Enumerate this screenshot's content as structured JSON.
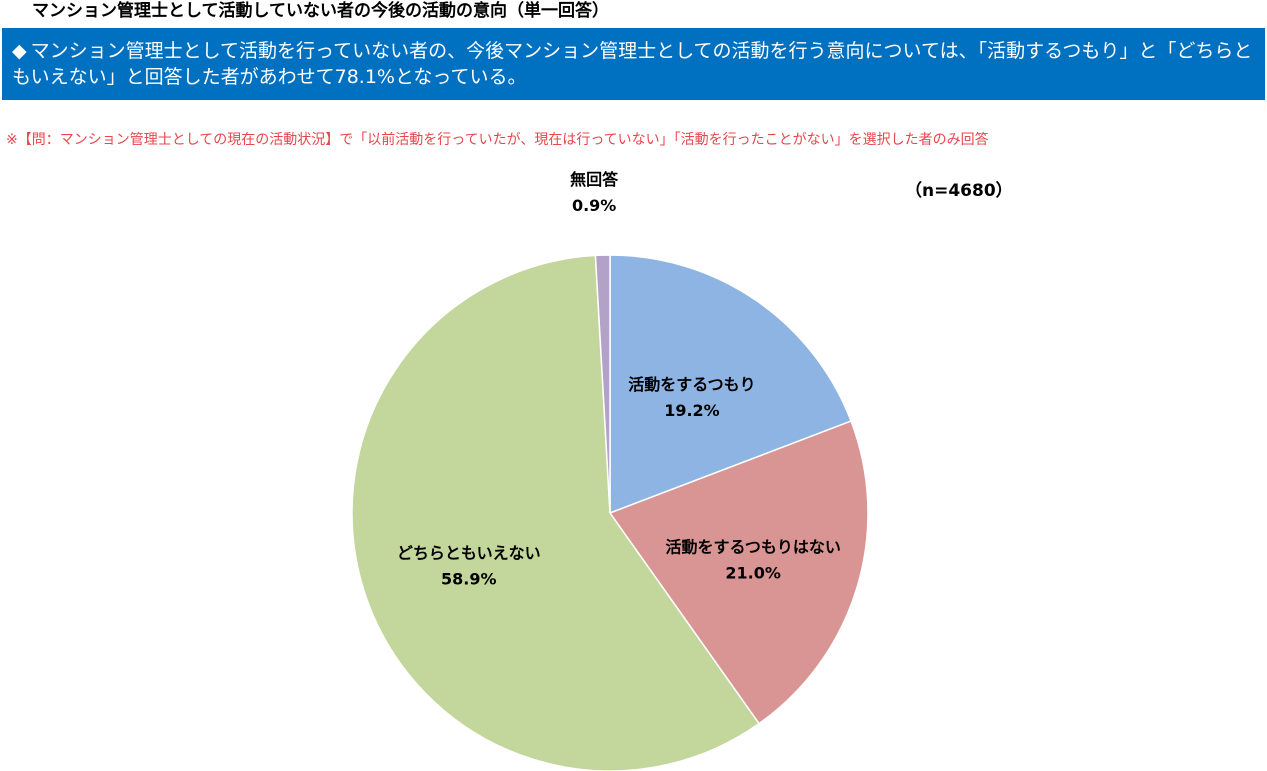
{
  "header": {
    "title": "マンション管理士として活動していない者の今後の活動の意向（単一回答）"
  },
  "summary": {
    "bullet": "◆",
    "text": "マンション管理士として活動を行っていない者の、今後マンション管理士としての活動を行う意向については、「活動するつもり」と「どちらともいえない」と回答した者があわせて78.1%となっている。"
  },
  "note": "※【問：マンション管理士としての現在の活動状況】で「以前活動を行っていたが、現在は行っていない」「活動を行ったことがない」を選択した者のみ回答",
  "sample_size": "（n=4680）",
  "chart_data": {
    "type": "pie",
    "start_angle_deg": 0,
    "direction": "clockwise",
    "slices": [
      {
        "label": "活動をするつもり",
        "value": 19.2,
        "value_label": "19.2%",
        "color": "#8eb4e3"
      },
      {
        "label": "活動をするつもりはない",
        "value": 21.0,
        "value_label": "21.0%",
        "color": "#d99594"
      },
      {
        "label": "どちらともいえない",
        "value": 58.9,
        "value_label": "58.9%",
        "color": "#c3d69b"
      },
      {
        "label": "無回答",
        "value": 0.9,
        "value_label": "0.9%",
        "color": "#b3a2c7"
      }
    ]
  }
}
